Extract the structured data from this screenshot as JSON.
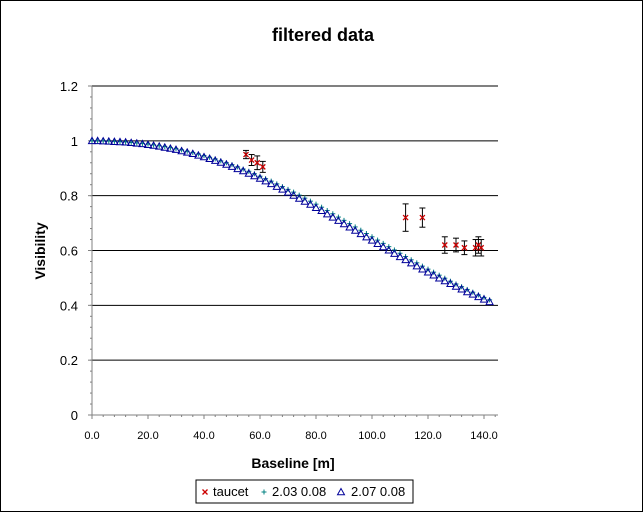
{
  "colors": {
    "taucet": "#cc0000",
    "model_a": "#008080",
    "model_b": "#000099",
    "errorbar": "#000000",
    "gridline": "#000000"
  },
  "chart_data": {
    "type": "scatter",
    "title": "filtered data",
    "xlabel": "Baseline [m]",
    "ylabel": "Visibility",
    "xlim": [
      0,
      145
    ],
    "ylim": [
      0,
      1.2
    ],
    "x_ticks": [
      "0.0",
      "20.0",
      "40.0",
      "60.0",
      "80.0",
      "100.0",
      "120.0",
      "140.0"
    ],
    "x_tick_values": [
      0,
      20,
      40,
      60,
      80,
      100,
      120,
      140
    ],
    "y_ticks": [
      "0",
      "0.2",
      "0.4",
      "0.6",
      "0.8",
      "1",
      "1.2"
    ],
    "y_tick_values": [
      0,
      0.2,
      0.4,
      0.6,
      0.8,
      1.0,
      1.2
    ],
    "grid": "horizontal",
    "legend_position": "bottom",
    "legend": [
      "taucet",
      "2.03 0.08",
      "2.07 0.08"
    ],
    "series": [
      {
        "name": "taucet",
        "marker": "x",
        "x": [
          55.0,
          57.0,
          59.0,
          61.0,
          112.0,
          118.0,
          126.0,
          130.0,
          133.0,
          137.0,
          138.0,
          139.0
        ],
        "y": [
          0.95,
          0.93,
          0.92,
          0.905,
          0.72,
          0.72,
          0.62,
          0.62,
          0.61,
          0.61,
          0.62,
          0.61
        ],
        "yerr": [
          0.015,
          0.02,
          0.025,
          0.02,
          0.05,
          0.035,
          0.03,
          0.025,
          0.025,
          0.03,
          0.03,
          0.03
        ]
      },
      {
        "name": "2.03 0.08",
        "marker": "+",
        "x": [
          0,
          2,
          4,
          6,
          8,
          10,
          12,
          14,
          16,
          18,
          20,
          22,
          24,
          26,
          28,
          30,
          32,
          34,
          36,
          38,
          40,
          42,
          44,
          46,
          48,
          50,
          52,
          54,
          56,
          58,
          60,
          62,
          64,
          66,
          68,
          70,
          72,
          74,
          76,
          78,
          80,
          82,
          84,
          86,
          88,
          90,
          92,
          94,
          96,
          98,
          100,
          102,
          104,
          106,
          108,
          110,
          112,
          114,
          116,
          118,
          120,
          122,
          124,
          126,
          128,
          130,
          132,
          134,
          136,
          138,
          140,
          142
        ],
        "y": [
          1.0,
          1.0,
          1.0,
          0.999,
          0.998,
          0.997,
          0.996,
          0.994,
          0.992,
          0.99,
          0.988,
          0.985,
          0.982,
          0.979,
          0.975,
          0.971,
          0.967,
          0.962,
          0.957,
          0.952,
          0.946,
          0.94,
          0.934,
          0.927,
          0.92,
          0.913,
          0.905,
          0.897,
          0.889,
          0.88,
          0.871,
          0.862,
          0.853,
          0.843,
          0.833,
          0.823,
          0.813,
          0.802,
          0.791,
          0.78,
          0.769,
          0.758,
          0.746,
          0.734,
          0.722,
          0.71,
          0.698,
          0.686,
          0.674,
          0.662,
          0.65,
          0.638,
          0.626,
          0.614,
          0.602,
          0.59,
          0.578,
          0.566,
          0.555,
          0.543,
          0.532,
          0.521,
          0.51,
          0.499,
          0.488,
          0.478,
          0.468,
          0.458,
          0.448,
          0.438,
          0.429,
          0.42
        ]
      },
      {
        "name": "2.07 0.08",
        "marker": "triangle",
        "x": [
          0,
          2,
          4,
          6,
          8,
          10,
          12,
          14,
          16,
          18,
          20,
          22,
          24,
          26,
          28,
          30,
          32,
          34,
          36,
          38,
          40,
          42,
          44,
          46,
          48,
          50,
          52,
          54,
          56,
          58,
          60,
          62,
          64,
          66,
          68,
          70,
          72,
          74,
          76,
          78,
          80,
          82,
          84,
          86,
          88,
          90,
          92,
          94,
          96,
          98,
          100,
          102,
          104,
          106,
          108,
          110,
          112,
          114,
          116,
          118,
          120,
          122,
          124,
          126,
          128,
          130,
          132,
          134,
          136,
          138,
          140,
          142
        ],
        "y": [
          1.0,
          1.0,
          0.999,
          0.998,
          0.997,
          0.996,
          0.995,
          0.993,
          0.991,
          0.989,
          0.986,
          0.983,
          0.98,
          0.976,
          0.972,
          0.968,
          0.963,
          0.958,
          0.953,
          0.947,
          0.941,
          0.935,
          0.928,
          0.921,
          0.914,
          0.906,
          0.898,
          0.89,
          0.881,
          0.872,
          0.863,
          0.853,
          0.843,
          0.833,
          0.823,
          0.812,
          0.801,
          0.79,
          0.779,
          0.768,
          0.756,
          0.745,
          0.733,
          0.721,
          0.709,
          0.697,
          0.685,
          0.673,
          0.661,
          0.649,
          0.637,
          0.625,
          0.613,
          0.601,
          0.589,
          0.577,
          0.566,
          0.554,
          0.543,
          0.532,
          0.521,
          0.51,
          0.499,
          0.489,
          0.479,
          0.469,
          0.459,
          0.449,
          0.44,
          0.431,
          0.422,
          0.413
        ]
      }
    ]
  }
}
